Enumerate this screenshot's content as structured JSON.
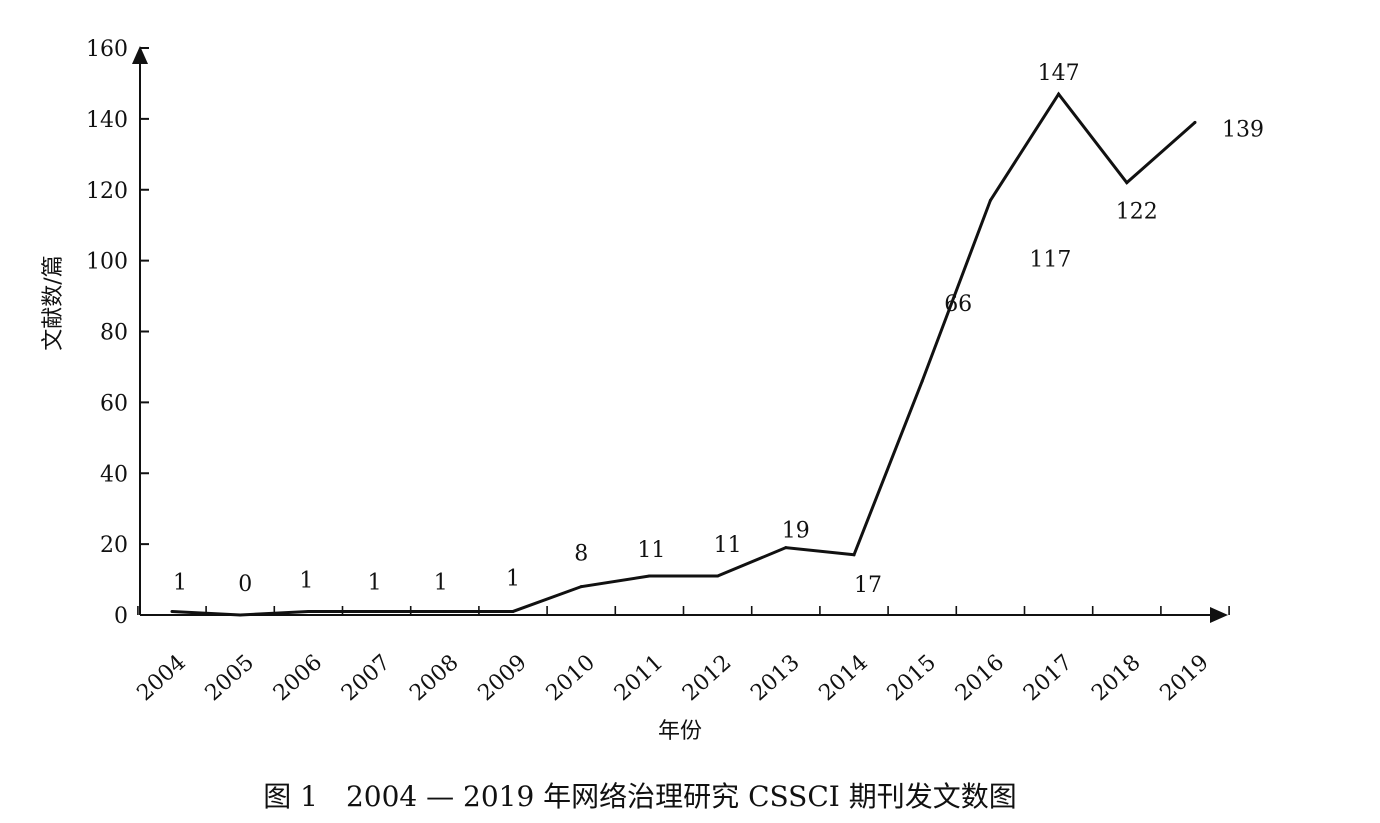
{
  "caption": "图 1　2004 — 2019 年网络治理研究 CSSCI 期刊发文数图",
  "chart_data": {
    "type": "line",
    "title": "",
    "xlabel": "年份",
    "ylabel": "文献数/篇",
    "ylim": [
      0,
      160
    ],
    "yticks": [
      0,
      20,
      40,
      60,
      80,
      100,
      120,
      140,
      160
    ],
    "categories": [
      "2004",
      "2005",
      "2006",
      "2007",
      "2008",
      "2009",
      "2010",
      "2011",
      "2012",
      "2013",
      "2014",
      "2015",
      "2016",
      "2017",
      "2018",
      "2019"
    ],
    "series": [
      {
        "values": [
          1,
          0,
          1,
          1,
          1,
          1,
          8,
          11,
          11,
          19,
          17,
          66,
          117,
          147,
          122,
          139
        ]
      }
    ],
    "data_labels": [
      "1",
      "0",
      "1",
      "1",
      "1",
      "1",
      "8",
      "11",
      "11",
      "19",
      "17",
      "66",
      "117",
      "147",
      "122",
      "139"
    ],
    "grid": false,
    "legend": "none",
    "line_color": "#111111"
  }
}
